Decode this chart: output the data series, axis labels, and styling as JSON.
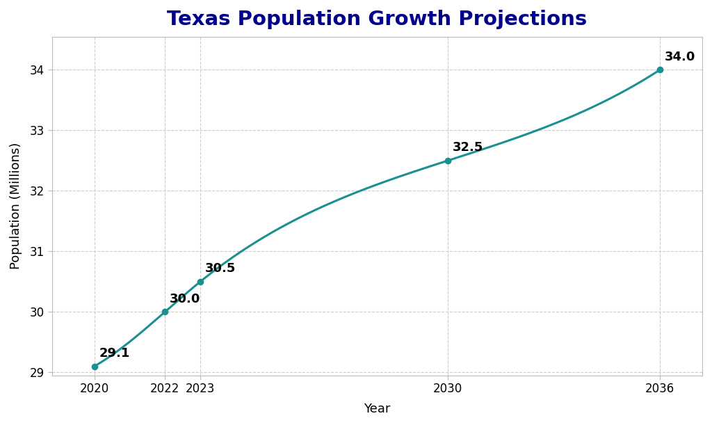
{
  "title": "Texas Population Growth Projections",
  "xlabel": "Year",
  "ylabel": "Population (Millions)",
  "years": [
    2020,
    2022,
    2023,
    2030,
    2036
  ],
  "population": [
    29.1,
    30.0,
    30.5,
    32.5,
    34.0
  ],
  "line_color": "#1a9090",
  "marker_color": "#1a9090",
  "marker_size": 7,
  "line_width": 2.2,
  "ylim": [
    28.95,
    34.55
  ],
  "yticks": [
    29,
    30,
    31,
    32,
    33,
    34
  ],
  "xticks": [
    2020,
    2022,
    2023,
    2030,
    2036
  ],
  "grid_color": "#cccccc",
  "title_color": "#00008B",
  "title_fontsize": 21,
  "label_fontsize": 13,
  "tick_fontsize": 12,
  "annotation_fontsize": 13,
  "background_color": "#ffffff"
}
